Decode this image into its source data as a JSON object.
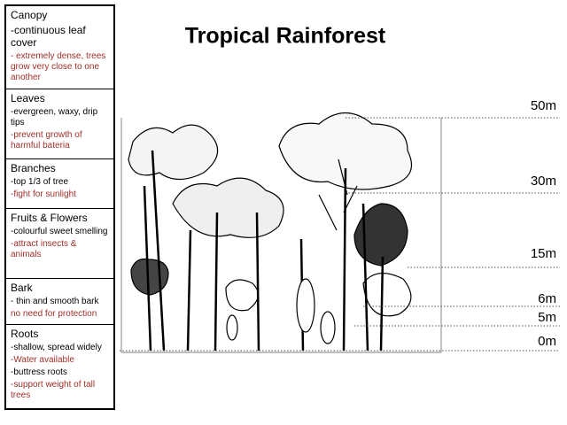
{
  "title": "Tropical Rainforest",
  "sections": [
    {
      "heading": "Canopy",
      "notes": [
        {
          "text": "-continuous leaf cover",
          "color": "#000000",
          "size": 12
        },
        {
          "text": "- extremely dense, trees grow very close to one another",
          "color": "#a0302a",
          "size": 10
        }
      ]
    },
    {
      "heading": "Leaves",
      "notes": [
        {
          "text": "-evergreen, waxy, drip tips",
          "color": "#000000",
          "size": 10
        },
        {
          "text": "-prevent growth of harmful bateria",
          "color": "#a0302a",
          "size": 10
        }
      ]
    },
    {
      "heading": "Branches",
      "notes": [
        {
          "text": "-top 1/3 of tree",
          "color": "#000000",
          "size": 10
        },
        {
          "text": "-fight for sunlight",
          "color": "#a0302a",
          "size": 10
        }
      ]
    },
    {
      "heading": "Fruits & Flowers",
      "notes": [
        {
          "text": "-colourful sweet smelling",
          "color": "#000000",
          "size": 10
        },
        {
          "text": "-attract insects & animals",
          "color": "#a0302a",
          "size": 10
        }
      ]
    },
    {
      "heading": "Bark",
      "notes": [
        {
          "text": "- thin and smooth bark",
          "color": "#000000",
          "size": 10
        },
        {
          "text": "no need for protection",
          "color": "#a0302a",
          "size": 10
        }
      ]
    },
    {
      "heading": "Roots",
      "notes": [
        {
          "text": "-shallow, spread widely",
          "color": "#000000",
          "size": 10
        },
        {
          "text": "-Water available",
          "color": "#a0302a",
          "size": 10
        },
        {
          "text": "-buttress roots",
          "color": "#000000",
          "size": 10
        },
        {
          "text": "-support weight of tall trees",
          "color": "#a0302a",
          "size": 10
        }
      ]
    }
  ],
  "heights": [
    "50m",
    "30m",
    "15m",
    "6m",
    "5m",
    "0m"
  ]
}
